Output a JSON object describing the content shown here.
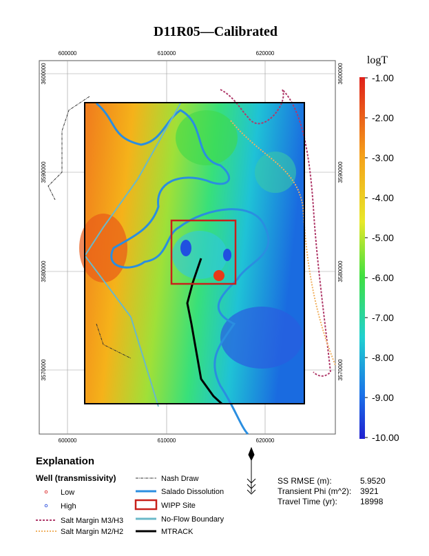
{
  "title": "D11R05—Calibrated",
  "map": {
    "x_ticks": [
      600000,
      610000,
      620000
    ],
    "y_ticks": [
      3600000,
      3590000,
      3580000,
      3570000
    ]
  },
  "colorbar": {
    "label": "logT",
    "ticks": [
      "-1.00",
      "-2.00",
      "-3.00",
      "-4.00",
      "-5.00",
      "-6.00",
      "-7.00",
      "-8.00",
      "-9.00",
      "-10.00"
    ]
  },
  "explanation": {
    "heading": "Explanation",
    "well_heading": "Well (transmissivity)",
    "left_items": [
      "Low",
      "High",
      "Salt Margin M3/H3",
      "Salt Margin M2/H2"
    ],
    "right_items": [
      "Nash Draw",
      "Salado Dissolution",
      "WIPP Site",
      "No-Flow Boundary",
      "MTRACK"
    ]
  },
  "stats": [
    {
      "label": "SS RMSE (m):",
      "value": "5.9520"
    },
    {
      "label": "Transient Phi (m^2):",
      "value": "3921"
    },
    {
      "label": "Travel Time (yr):",
      "value": "18998"
    }
  ]
}
